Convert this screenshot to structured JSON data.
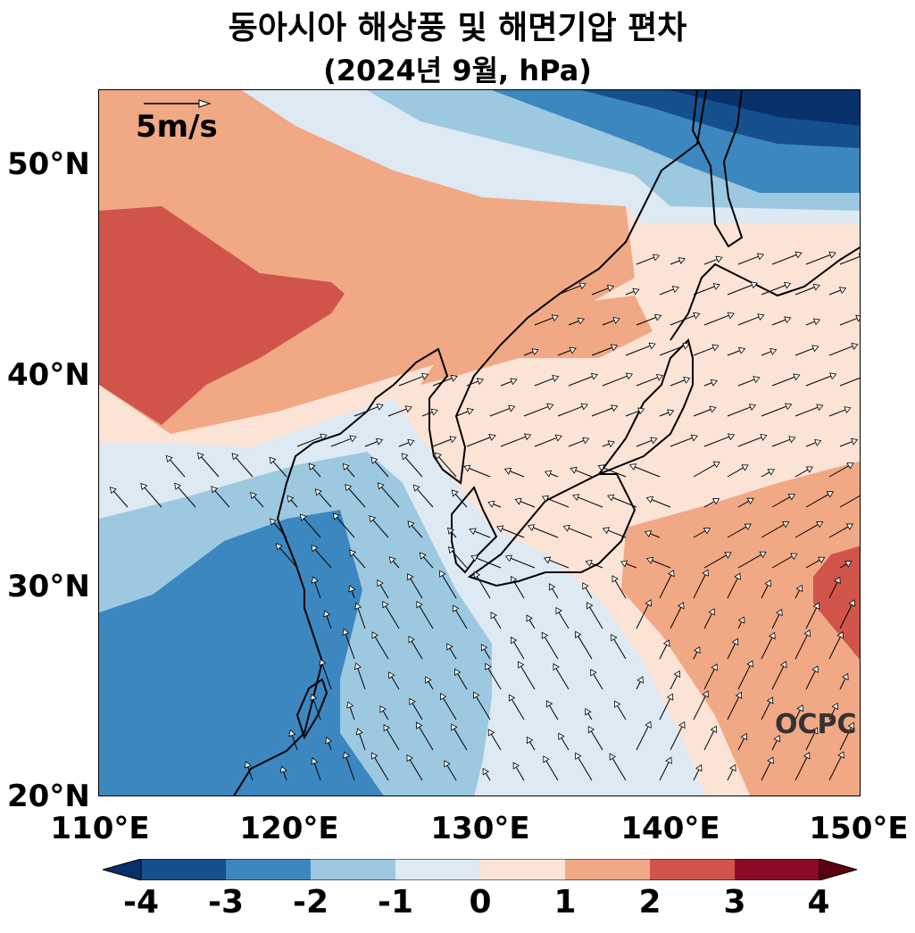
{
  "title": {
    "line1": "동아시아 해상풍 및 해면기압 편차",
    "line2": "(2024년 9월, hPa)"
  },
  "axes": {
    "y_labels": [
      "50°N",
      "40°N",
      "30°N",
      "20°N"
    ],
    "x_labels": [
      "110°E",
      "120°E",
      "130°E",
      "140°E",
      "150°E"
    ],
    "lon_range": [
      110,
      150
    ],
    "lat_range": [
      20,
      53.5
    ]
  },
  "reference_vector": {
    "label": "5m/s",
    "speed": 5
  },
  "watermark": "OCPC",
  "colorbar": {
    "ticks": [
      "-4",
      "-3",
      "-2",
      "-1",
      "0",
      "1",
      "2",
      "3",
      "4"
    ],
    "colors": [
      "#08306b",
      "#164f8e",
      "#3c87c0",
      "#9cc8e0",
      "#dde9f3",
      "#fbe3d6",
      "#f1a885",
      "#d1544a",
      "#8c0c25",
      "#5c0014"
    ],
    "extend": "both"
  }
}
